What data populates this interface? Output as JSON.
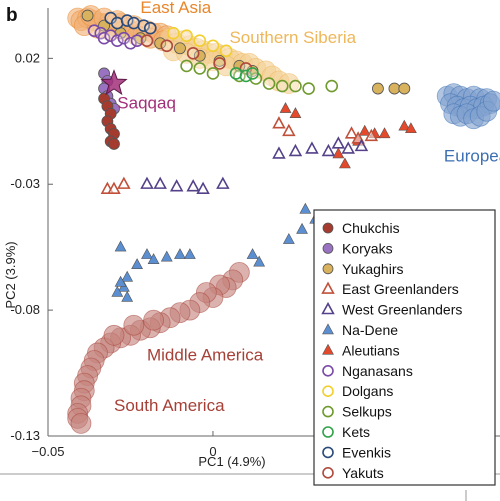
{
  "panel_label": "b",
  "colors": {
    "chukchis": "#a53a2e",
    "koryaks": "#9a72c2",
    "yukaghirs": "#d8b25c",
    "east_greenlanders": "#c0503a",
    "west_greenlanders": "#54418a",
    "na_dene": "#5b8fd1",
    "aleutians": "#e3492a",
    "nganasans": "#7a4aa8",
    "dolgans": "#f2cf2e",
    "selkups": "#6f9a2e",
    "kets": "#2fa24a",
    "evenkis": "#2a4a7a",
    "yakuts": "#b04a3c",
    "east_asia": "#e8862a",
    "southern_siberia": "#eeb75a",
    "europeans": "#3d6fb3",
    "americas": "#a64036",
    "saqqaq": "#a22f7a"
  },
  "chart_data": {
    "type": "scatter",
    "title": "",
    "xlabel": "PC1 (4.9%)",
    "ylabel": "PC2 (3.9%)",
    "xlim": [
      -0.05,
      0.087
    ],
    "ylim": [
      -0.13,
      0.04
    ],
    "x_ticks": [
      {
        "value": -0.05,
        "label": "−0.05"
      },
      {
        "value": 0,
        "label": "0"
      }
    ],
    "y_ticks": [
      {
        "value": 0.02,
        "label": "0.02"
      },
      {
        "value": -0.03,
        "label": "-0.03"
      },
      {
        "value": -0.08,
        "label": "-0.08"
      },
      {
        "value": -0.13,
        "label": "-0.13"
      }
    ],
    "legend": {
      "placement": "bottom-right",
      "entries": [
        {
          "name": "Chukchis",
          "marker": "circle-filled",
          "color_key": "chukchis"
        },
        {
          "name": "Koryaks",
          "marker": "circle-filled",
          "color_key": "koryaks"
        },
        {
          "name": "Yukaghirs",
          "marker": "circle-filled",
          "color_key": "yukaghirs"
        },
        {
          "name": "East Greenlanders",
          "marker": "triangle-open",
          "color_key": "east_greenlanders"
        },
        {
          "name": "West Greenlanders",
          "marker": "triangle-open",
          "color_key": "west_greenlanders"
        },
        {
          "name": "Na-Dene",
          "marker": "triangle-filled",
          "color_key": "na_dene"
        },
        {
          "name": "Aleutians",
          "marker": "triangle-filled",
          "color_key": "aleutians"
        },
        {
          "name": "Nganasans",
          "marker": "circle-open",
          "color_key": "nganasans"
        },
        {
          "name": "Dolgans",
          "marker": "circle-open",
          "color_key": "dolgans"
        },
        {
          "name": "Selkups",
          "marker": "circle-open",
          "color_key": "selkups"
        },
        {
          "name": "Kets",
          "marker": "circle-open",
          "color_key": "kets"
        },
        {
          "name": "Evenkis",
          "marker": "circle-open",
          "color_key": "evenkis"
        },
        {
          "name": "Yakuts",
          "marker": "circle-open",
          "color_key": "yakuts"
        }
      ]
    },
    "annotations": [
      {
        "text": "East Asia",
        "color_key": "east_asia",
        "x": -0.022,
        "y": 0.038
      },
      {
        "text": "Southern Siberia",
        "color_key": "southern_siberia",
        "x": 0.005,
        "y": 0.026
      },
      {
        "text": "Saqqaq",
        "color_key": "saqqaq",
        "x": -0.029,
        "y": 0.0
      },
      {
        "text": "Europeans",
        "color_key": "europeans",
        "x": 0.07,
        "y": -0.021
      },
      {
        "text": "Middle America",
        "color_key": "americas",
        "x": -0.02,
        "y": -0.1
      },
      {
        "text": "South America",
        "color_key": "americas",
        "x": -0.03,
        "y": -0.12
      }
    ],
    "series": [
      {
        "key": "east_asia",
        "marker": "circle-large",
        "points": [
          [
            -0.041,
            0.036
          ],
          [
            -0.04,
            0.035
          ],
          [
            -0.038,
            0.036
          ],
          [
            -0.036,
            0.035
          ],
          [
            -0.034,
            0.034
          ],
          [
            -0.032,
            0.034
          ],
          [
            -0.03,
            0.033
          ],
          [
            -0.028,
            0.034
          ],
          [
            -0.026,
            0.032
          ],
          [
            -0.024,
            0.033
          ],
          [
            -0.022,
            0.031
          ],
          [
            -0.02,
            0.031
          ],
          [
            -0.018,
            0.03
          ],
          [
            -0.016,
            0.03
          ],
          [
            -0.014,
            0.029
          ],
          [
            -0.039,
            0.033
          ],
          [
            -0.035,
            0.032
          ],
          [
            -0.031,
            0.031
          ],
          [
            -0.027,
            0.031
          ],
          [
            -0.023,
            0.029
          ],
          [
            -0.019,
            0.028
          ],
          [
            -0.015,
            0.027
          ],
          [
            -0.037,
            0.037
          ],
          [
            -0.033,
            0.036
          ],
          [
            -0.029,
            0.035
          ]
        ]
      },
      {
        "key": "southern_siberia",
        "marker": "circle-large",
        "points": [
          [
            -0.013,
            0.028
          ],
          [
            -0.011,
            0.026
          ],
          [
            -0.009,
            0.027
          ],
          [
            -0.007,
            0.025
          ],
          [
            -0.005,
            0.024
          ],
          [
            -0.003,
            0.023
          ],
          [
            -0.001,
            0.022
          ],
          [
            0.001,
            0.022
          ],
          [
            0.003,
            0.021
          ],
          [
            0.005,
            0.02
          ],
          [
            0.007,
            0.019
          ],
          [
            0.009,
            0.018
          ],
          [
            0.011,
            0.018
          ],
          [
            0.013,
            0.016
          ],
          [
            -0.012,
            0.023
          ],
          [
            -0.008,
            0.022
          ],
          [
            -0.004,
            0.02
          ],
          [
            0.0,
            0.019
          ],
          [
            0.004,
            0.017
          ],
          [
            0.016,
            0.015
          ],
          [
            0.018,
            0.013
          ],
          [
            0.02,
            0.011
          ],
          [
            0.023,
            0.01
          ]
        ]
      },
      {
        "key": "europeans",
        "marker": "circle-large",
        "points": [
          [
            0.071,
            0.005
          ],
          [
            0.073,
            0.006
          ],
          [
            0.075,
            0.005
          ],
          [
            0.077,
            0.004
          ],
          [
            0.079,
            0.005
          ],
          [
            0.081,
            0.004
          ],
          [
            0.083,
            0.004
          ],
          [
            0.072,
            0.002
          ],
          [
            0.074,
            0.001
          ],
          [
            0.076,
            0.0
          ],
          [
            0.078,
            0.001
          ],
          [
            0.08,
            0.0
          ],
          [
            0.082,
            0.001
          ],
          [
            0.084,
            0.002
          ],
          [
            0.073,
            -0.002
          ],
          [
            0.075,
            -0.003
          ],
          [
            0.077,
            -0.002
          ],
          [
            0.079,
            -0.004
          ],
          [
            0.081,
            -0.003
          ],
          [
            0.083,
            -0.001
          ],
          [
            0.085,
            0.003
          ]
        ]
      },
      {
        "key": "americas",
        "marker": "circle-large",
        "points": [
          [
            0.008,
            -0.065
          ],
          [
            0.006,
            -0.068
          ],
          [
            0.004,
            -0.071
          ],
          [
            0.002,
            -0.07
          ],
          [
            0.0,
            -0.075
          ],
          [
            -0.002,
            -0.073
          ],
          [
            -0.004,
            -0.077
          ],
          [
            -0.007,
            -0.08
          ],
          [
            -0.01,
            -0.081
          ],
          [
            -0.013,
            -0.083
          ],
          [
            -0.016,
            -0.085
          ],
          [
            -0.019,
            -0.087
          ],
          [
            -0.022,
            -0.088
          ],
          [
            -0.025,
            -0.09
          ],
          [
            -0.028,
            -0.091
          ],
          [
            -0.031,
            -0.093
          ],
          [
            -0.033,
            -0.095
          ],
          [
            -0.035,
            -0.097
          ],
          [
            -0.036,
            -0.1
          ],
          [
            -0.037,
            -0.103
          ],
          [
            -0.038,
            -0.106
          ],
          [
            -0.039,
            -0.109
          ],
          [
            -0.039,
            -0.112
          ],
          [
            -0.04,
            -0.115
          ],
          [
            -0.04,
            -0.118
          ],
          [
            -0.041,
            -0.121
          ],
          [
            -0.041,
            -0.123
          ],
          [
            -0.04,
            -0.125
          ],
          [
            -0.03,
            -0.09
          ],
          [
            -0.024,
            -0.086
          ],
          [
            -0.018,
            -0.084
          ]
        ]
      },
      {
        "key": "yukaghirs",
        "marker": "circle-filled",
        "points": [
          [
            -0.038,
            0.037
          ],
          [
            -0.033,
            0.033
          ],
          [
            -0.028,
            0.03
          ],
          [
            -0.022,
            0.028
          ],
          [
            -0.016,
            0.026
          ],
          [
            -0.01,
            0.024
          ],
          [
            -0.004,
            0.021
          ],
          [
            0.002,
            0.019
          ],
          [
            0.008,
            0.017
          ],
          [
            0.012,
            0.015
          ],
          [
            0.05,
            0.008
          ],
          [
            0.055,
            0.008
          ],
          [
            0.058,
            0.008
          ]
        ]
      },
      {
        "key": "koryaks",
        "marker": "circle-filled",
        "points": [
          [
            -0.033,
            0.014
          ],
          [
            -0.032,
            0.011
          ],
          [
            -0.033,
            0.008
          ],
          [
            -0.032,
            0.005
          ],
          [
            -0.031,
            0.002
          ],
          [
            -0.03,
            0.0
          ]
        ]
      },
      {
        "key": "chukchis",
        "marker": "circle-filled",
        "points": [
          [
            -0.033,
            0.004
          ],
          [
            -0.032,
            0.001
          ],
          [
            -0.031,
            -0.002
          ],
          [
            -0.032,
            -0.005
          ],
          [
            -0.031,
            -0.008
          ],
          [
            -0.03,
            -0.01
          ],
          [
            -0.031,
            -0.013
          ],
          [
            -0.03,
            -0.014
          ]
        ]
      },
      {
        "key": "nganasans",
        "marker": "circle-open",
        "points": [
          [
            -0.036,
            0.031
          ],
          [
            -0.034,
            0.03
          ],
          [
            -0.033,
            0.028
          ],
          [
            -0.031,
            0.029
          ],
          [
            -0.029,
            0.027
          ],
          [
            -0.027,
            0.028
          ],
          [
            -0.025,
            0.026
          ],
          [
            -0.023,
            0.027
          ]
        ]
      },
      {
        "key": "evenkis",
        "marker": "circle-open",
        "points": [
          [
            -0.031,
            0.036
          ],
          [
            -0.029,
            0.034
          ],
          [
            -0.026,
            0.035
          ],
          [
            -0.024,
            0.034
          ],
          [
            -0.021,
            0.033
          ],
          [
            -0.019,
            0.032
          ]
        ]
      },
      {
        "key": "dolgans",
        "marker": "circle-open",
        "points": [
          [
            -0.012,
            0.03
          ],
          [
            -0.008,
            0.029
          ],
          [
            -0.004,
            0.027
          ],
          [
            0.0,
            0.025
          ],
          [
            0.004,
            0.023
          ]
        ]
      },
      {
        "key": "yakuts",
        "marker": "circle-open",
        "points": [
          [
            -0.02,
            0.027
          ],
          [
            -0.014,
            0.025
          ],
          [
            -0.006,
            0.022
          ],
          [
            0.002,
            0.018
          ],
          [
            0.01,
            0.016
          ]
        ]
      },
      {
        "key": "selkups",
        "marker": "circle-open",
        "points": [
          [
            -0.008,
            0.017
          ],
          [
            -0.004,
            0.016
          ],
          [
            0.0,
            0.014
          ],
          [
            0.008,
            0.013
          ],
          [
            0.013,
            0.012
          ],
          [
            0.017,
            0.01
          ],
          [
            0.021,
            0.009
          ],
          [
            0.025,
            0.009
          ],
          [
            0.029,
            0.008
          ],
          [
            0.036,
            0.009
          ]
        ]
      },
      {
        "key": "kets",
        "marker": "circle-open",
        "points": [
          [
            0.007,
            0.014
          ],
          [
            0.01,
            0.013
          ],
          [
            0.012,
            0.014
          ]
        ]
      },
      {
        "key": "aleutians",
        "marker": "triangle-filled",
        "points": [
          [
            0.022,
            -0.0
          ],
          [
            0.046,
            -0.009
          ],
          [
            0.049,
            -0.01
          ],
          [
            0.052,
            -0.01
          ],
          [
            0.058,
            -0.007
          ],
          [
            0.06,
            -0.008
          ],
          [
            0.038,
            -0.018
          ],
          [
            0.04,
            -0.022
          ],
          [
            0.044,
            -0.013
          ],
          [
            0.025,
            -0.002
          ]
        ]
      },
      {
        "key": "east_greenlanders",
        "marker": "triangle-open",
        "points": [
          [
            -0.032,
            -0.032
          ],
          [
            -0.03,
            -0.032
          ],
          [
            -0.027,
            -0.03
          ],
          [
            0.02,
            -0.006
          ],
          [
            0.023,
            -0.009
          ],
          [
            0.042,
            -0.01
          ],
          [
            0.044,
            -0.012
          ],
          [
            0.048,
            -0.011
          ]
        ]
      },
      {
        "key": "west_greenlanders",
        "marker": "triangle-open",
        "points": [
          [
            -0.02,
            -0.03
          ],
          [
            -0.016,
            -0.03
          ],
          [
            -0.011,
            -0.031
          ],
          [
            -0.006,
            -0.031
          ],
          [
            -0.003,
            -0.032
          ],
          [
            0.003,
            -0.03
          ],
          [
            0.02,
            -0.018
          ],
          [
            0.025,
            -0.017
          ],
          [
            0.03,
            -0.016
          ],
          [
            0.035,
            -0.017
          ],
          [
            0.041,
            -0.016
          ],
          [
            0.045,
            -0.015
          ],
          [
            0.038,
            -0.014
          ]
        ]
      },
      {
        "key": "na_dene",
        "marker": "triangle-filled",
        "points": [
          [
            -0.028,
            -0.055
          ],
          [
            -0.026,
            -0.067
          ],
          [
            -0.023,
            -0.062
          ],
          [
            -0.02,
            -0.058
          ],
          [
            -0.018,
            -0.06
          ],
          [
            -0.014,
            -0.059
          ],
          [
            -0.01,
            -0.058
          ],
          [
            -0.007,
            -0.058
          ],
          [
            -0.027,
            -0.071
          ],
          [
            -0.029,
            -0.073
          ],
          [
            -0.026,
            -0.075
          ],
          [
            -0.028,
            -0.069
          ],
          [
            0.012,
            -0.058
          ],
          [
            0.014,
            -0.061
          ],
          [
            0.023,
            -0.052
          ],
          [
            0.027,
            -0.048
          ],
          [
            0.031,
            -0.044
          ],
          [
            0.033,
            -0.043
          ],
          [
            0.028,
            -0.04
          ]
        ]
      }
    ],
    "highlight": {
      "name": "Saqqaq",
      "marker": "star",
      "color_key": "saqqaq",
      "x": -0.03,
      "y": 0.01
    }
  }
}
